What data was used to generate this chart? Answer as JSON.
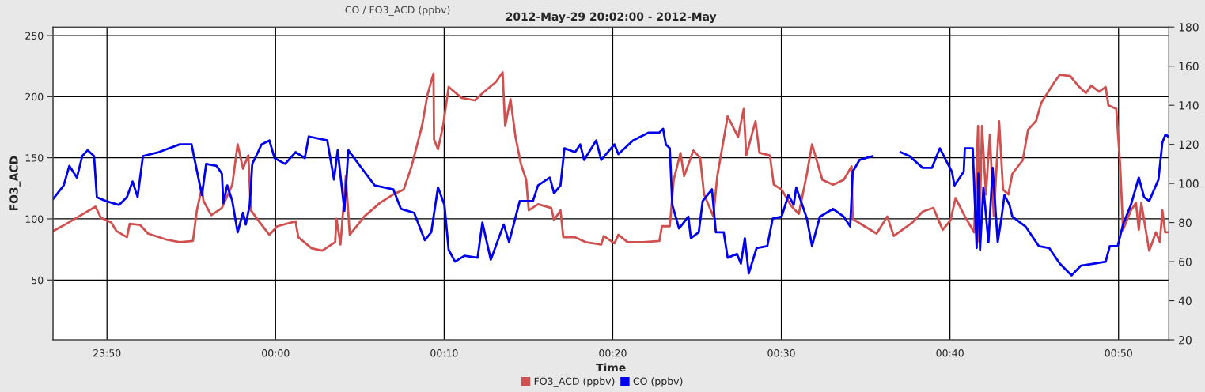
{
  "chart_data": {
    "type": "line",
    "title": "2012-May-29 20:02:00 - 2012-May",
    "xlabel": "Time",
    "ylabel": "FO3_ACD",
    "annotations": [
      "CO / FO3_ACD (ppbv)"
    ],
    "xlim": [
      "2012-05-29T23:46:48",
      "2012-05-30T00:52:59"
    ],
    "xticks": [
      {
        "value": "2012-05-29T23:50",
        "label": "23:50"
      },
      {
        "value": "2012-05-30T00:00",
        "label": "00:00"
      },
      {
        "value": "2012-05-30T00:10",
        "label": "00:10"
      },
      {
        "value": "2012-05-30T00:20",
        "label": "00:20"
      },
      {
        "value": "2012-05-30T00:30",
        "label": "00:30"
      },
      {
        "value": "2012-05-30T00:40",
        "label": "00:40"
      },
      {
        "value": "2012-05-30T00:50",
        "label": "00:50"
      }
    ],
    "ylim": [
      1,
      257
    ],
    "yticks": [
      50,
      100,
      150,
      200,
      250
    ],
    "y2lim": [
      20,
      180
    ],
    "y2ticks": [
      20,
      40,
      60,
      80,
      100,
      120,
      140,
      160,
      180
    ],
    "grid": true,
    "legend": "bottom",
    "series": [
      {
        "name": "FO3_ACD (ppbv)",
        "color": "#d05050",
        "x": [
          "2012-05-29T23:46:48",
          "2012-05-29T23:47:36",
          "2012-05-29T23:48:13",
          "2012-05-29T23:49:19",
          "2012-05-29T23:49:38",
          "2012-05-29T23:50:15",
          "2012-05-29T23:50:34",
          "2012-05-29T23:51:11",
          "2012-05-29T23:51:21",
          "2012-05-29T23:51:58",
          "2012-05-29T23:52:26",
          "2012-05-29T23:53:32",
          "2012-05-29T23:54:19",
          "2012-05-29T23:55:06",
          "2012-05-29T23:55:20",
          "2012-05-29T23:55:38",
          "2012-05-29T23:55:43",
          "2012-05-29T23:56:11",
          "2012-05-29T23:56:49",
          "2012-05-29T23:57:26",
          "2012-05-29T23:57:45",
          "2012-05-29T23:58:04",
          "2012-05-29T23:58:23",
          "2012-05-29T23:58:32",
          "2012-05-29T23:59:01",
          "2012-05-29T23:59:38",
          "2012-05-30T00:00:06",
          "2012-05-30T00:01:11",
          "2012-05-30T00:01:21",
          "2012-05-30T00:02:08",
          "2012-05-30T00:02:46",
          "2012-05-30T00:03:32",
          "2012-05-30T00:03:37",
          "2012-05-30T00:03:51",
          "2012-05-30T00:04:10",
          "2012-05-30T00:04:24",
          "2012-05-30T00:05:16",
          "2012-05-30T00:06:11",
          "2012-05-30T00:06:59",
          "2012-05-30T00:07:36",
          "2012-05-30T00:08:04",
          "2012-05-30T00:08:41",
          "2012-05-30T00:09:01",
          "2012-05-30T00:09:22",
          "2012-05-30T00:09:24",
          "2012-05-30T00:09:38",
          "2012-05-30T00:09:56",
          "2012-05-30T00:10:16",
          "2012-05-30T00:11:02",
          "2012-05-30T00:11:49",
          "2012-05-30T00:12:17",
          "2012-05-30T00:13:04",
          "2012-05-30T00:13:28",
          "2012-05-30T00:13:37",
          "2012-05-30T00:13:56",
          "2012-05-30T00:14:14",
          "2012-05-30T00:14:33",
          "2012-05-30T00:14:52",
          "2012-05-30T00:15:01",
          "2012-05-30T00:15:34",
          "2012-05-30T00:16:21",
          "2012-05-30T00:16:31",
          "2012-05-30T00:16:54",
          "2012-05-30T00:17:04",
          "2012-05-30T00:17:46",
          "2012-05-30T00:18:23",
          "2012-05-30T00:19:19",
          "2012-05-30T00:19:28",
          "2012-05-30T00:20:06",
          "2012-05-30T00:20:20",
          "2012-05-30T00:20:53",
          "2012-05-30T00:21:49",
          "2012-05-30T00:22:46",
          "2012-05-30T00:22:55",
          "2012-05-30T00:23:23",
          "2012-05-30T00:23:37",
          "2012-05-30T00:24:01",
          "2012-05-30T00:24:14",
          "2012-05-30T00:24:47",
          "2012-05-30T00:25:11",
          "2012-05-30T00:25:25",
          "2012-05-30T00:25:58",
          "2012-05-30T00:26:12",
          "2012-05-30T00:26:49",
          "2012-05-30T00:27:26",
          "2012-05-30T00:27:46",
          "2012-05-30T00:27:55",
          "2012-05-30T00:28:28",
          "2012-05-30T00:28:42",
          "2012-05-30T00:29:19",
          "2012-05-30T00:29:33",
          "2012-05-30T00:30:01",
          "2012-05-30T00:30:34",
          "2012-05-30T00:31:02",
          "2012-05-30T00:31:31",
          "2012-05-30T00:31:49",
          "2012-05-30T00:32:26",
          "2012-05-30T00:33:04",
          "2012-05-30T00:33:42",
          "2012-05-30T00:34:10",
          "2012-05-30T00:34:14",
          "2012-05-30T00:34:56",
          "2012-05-30T00:35:39",
          "2012-05-30T00:36:17",
          "2012-05-30T00:36:40",
          "2012-05-30T00:37:46",
          "2012-05-30T00:38:23",
          "2012-05-30T00:39:01",
          "2012-05-30T00:39:34",
          "2012-05-30T00:40:02",
          "2012-05-30T00:40:20",
          "2012-05-30T00:40:53",
          "2012-05-30T00:41:26",
          "2012-05-30T00:41:40",
          "2012-05-30T00:41:44",
          "2012-05-30T00:41:54",
          "2012-05-30T00:42:08",
          "2012-05-30T00:42:22",
          "2012-05-30T00:42:36",
          "2012-05-30T00:42:55",
          "2012-05-30T00:43:09",
          "2012-05-30T00:43:28",
          "2012-05-30T00:43:42",
          "2012-05-30T00:44:19",
          "2012-05-30T00:44:38",
          "2012-05-30T00:45:06",
          "2012-05-30T00:45:25",
          "2012-05-30T00:46:12",
          "2012-05-30T00:46:31",
          "2012-05-30T00:47:08",
          "2012-05-30T00:47:36",
          "2012-05-30T00:48:04",
          "2012-05-30T00:48:23",
          "2012-05-30T00:48:51",
          "2012-05-30T00:49:14",
          "2012-05-30T00:49:24",
          "2012-05-30T00:49:52",
          "2012-05-30T00:50:06",
          "2012-05-30T00:50:16",
          "2012-05-30T00:50:44",
          "2012-05-30T00:51:02",
          "2012-05-30T00:51:12",
          "2012-05-30T00:51:21",
          "2012-05-30T00:51:49",
          "2012-05-30T00:52:13",
          "2012-05-30T00:52:27",
          "2012-05-30T00:52:36",
          "2012-05-30T00:52:46",
          "2012-05-30T00:52:55"
        ],
        "values": [
          90,
          96,
          101,
          110,
          101,
          97,
          90,
          85,
          96,
          95,
          88,
          83,
          81,
          82,
          107,
          126,
          115,
          103,
          109,
          128,
          161,
          141,
          152,
          107,
          98,
          87,
          94,
          98,
          85,
          76,
          74,
          81,
          100,
          79,
          135,
          87,
          102,
          113,
          120,
          124,
          143,
          176,
          202,
          219,
          165,
          157,
          176,
          208,
          199,
          197,
          203,
          212,
          220,
          176,
          198,
          167,
          145,
          132,
          107,
          112,
          109,
          99,
          107,
          85,
          85,
          81,
          79,
          86,
          80,
          87,
          81,
          81,
          82,
          94,
          94,
          132,
          154,
          135,
          156,
          150,
          120,
          102,
          135,
          184,
          167,
          190,
          152,
          180,
          154,
          152,
          128,
          124,
          111,
          104,
          137,
          161,
          132,
          128,
          132,
          143,
          100,
          94,
          88,
          102,
          86,
          97,
          106,
          109,
          91,
          99,
          117,
          102,
          89,
          176,
          81,
          176,
          120,
          169,
          102,
          180,
          124,
          120,
          137,
          148,
          173,
          180,
          195,
          212,
          218,
          217,
          209,
          203,
          209,
          204,
          208,
          193,
          190,
          143,
          91,
          107,
          113,
          91,
          113,
          74,
          89,
          81,
          107,
          89,
          89
        ]
      },
      {
        "name": "CO (ppbv)",
        "color": "#0000ee",
        "axis": "y2",
        "x": [
          "2012-05-29T23:46:48",
          "2012-05-29T23:47:26",
          "2012-05-29T23:47:46",
          "2012-05-29T23:48:13",
          "2012-05-29T23:48:32",
          "2012-05-29T23:48:51",
          "2012-05-29T23:49:14",
          "2012-05-29T23:49:24",
          "2012-05-29T23:49:56",
          "2012-05-29T23:50:43",
          "2012-05-29T23:51:11",
          "2012-05-29T23:51:31",
          "2012-05-29T23:51:49",
          "2012-05-29T23:52:08",
          "2012-05-29T23:53:04",
          "2012-05-29T23:54:19",
          "2012-05-29T23:55:01",
          "2012-05-29T23:55:15",
          "2012-05-29T23:55:38",
          "2012-05-29T23:55:53",
          "2012-05-29T23:56:30",
          "2012-05-29T23:56:49",
          "2012-05-29T23:56:54",
          "2012-05-29T23:57:08",
          "2012-05-29T23:57:26",
          "2012-05-29T23:57:45",
          "2012-05-29T23:58:04",
          "2012-05-29T23:58:14",
          "2012-05-29T23:58:28",
          "2012-05-29T23:58:37",
          "2012-05-29T23:58:51",
          "2012-05-29T23:59:10",
          "2012-05-29T23:59:38",
          "2012-05-29T23:59:56",
          "2012-05-30T00:00:34",
          "2012-05-30T00:01:11",
          "2012-05-30T00:01:44",
          "2012-05-30T00:01:58",
          "2012-05-30T00:03:04",
          "2012-05-30T00:03:28",
          "2012-05-30T00:03:41",
          "2012-05-30T00:04:05",
          "2012-05-30T00:04:19",
          "2012-05-30T00:05:16",
          "2012-05-30T00:05:53",
          "2012-05-30T00:06:59",
          "2012-05-30T00:07:26",
          "2012-05-30T00:08:13",
          "2012-05-30T00:08:51",
          "2012-05-30T00:09:14",
          "2012-05-30T00:09:38",
          "2012-05-30T00:10:01",
          "2012-05-30T00:10:16",
          "2012-05-30T00:10:39",
          "2012-05-30T00:11:12",
          "2012-05-30T00:11:59",
          "2012-05-30T00:12:16",
          "2012-05-30T00:12:46",
          "2012-05-30T00:13:32",
          "2012-05-30T00:13:51",
          "2012-05-30T00:14:29",
          "2012-05-30T00:15:16",
          "2012-05-30T00:15:34",
          "2012-05-30T00:16:16",
          "2012-05-30T00:16:31",
          "2012-05-30T00:16:54",
          "2012-05-30T00:17:08",
          "2012-05-30T00:17:46",
          "2012-05-30T00:18:04",
          "2012-05-30T00:18:18",
          "2012-05-30T00:19:01",
          "2012-05-30T00:19:19",
          "2012-05-30T00:20:06",
          "2012-05-30T00:20:20",
          "2012-05-30T00:21:12",
          "2012-05-30T00:22:08",
          "2012-05-30T00:22:46",
          "2012-05-30T00:22:59",
          "2012-05-30T00:23:09",
          "2012-05-30T00:23:23",
          "2012-05-30T00:23:32",
          "2012-05-30T00:23:56",
          "2012-05-30T00:24:29",
          "2012-05-30T00:24:38",
          "2012-05-30T00:25:06",
          "2012-05-30T00:25:20",
          "2012-05-30T00:25:53",
          "2012-05-30T00:26:07",
          "2012-05-30T00:26:35",
          "2012-05-30T00:26:49",
          "2012-05-30T00:27:22",
          "2012-05-30T00:27:36",
          "2012-05-30T00:27:50",
          "2012-05-30T00:28:04",
          "2012-05-30T00:28:32",
          "2012-05-30T00:29:10",
          "2012-05-30T00:29:29",
          "2012-05-30T00:30:01",
          "2012-05-30T00:30:25",
          "2012-05-30T00:30:44",
          "2012-05-30T00:30:53",
          "2012-05-30T00:31:31",
          "2012-05-30T00:31:49",
          "2012-05-30T00:32:17",
          "2012-05-30T00:33:04",
          "2012-05-30T00:33:42",
          "2012-05-30T00:34:05",
          "2012-05-30T00:34:14",
          "2012-05-30T00:34:38",
          "2012-05-30T00:35:25",
          "2012-05-30T00:36:12",
          "2012-05-30T00:37:04",
          "2012-05-30T00:37:36",
          "2012-05-30T00:38:23",
          "2012-05-30T00:38:56",
          "2012-05-30T00:39:24",
          "2012-05-30T00:40:07",
          "2012-05-30T00:40:16",
          "2012-05-30T00:40:49",
          "2012-05-30T00:40:53",
          "2012-05-30T00:41:21",
          "2012-05-30T00:41:35",
          "2012-05-30T00:41:41",
          "2012-05-30T00:41:47",
          "2012-05-30T00:41:59",
          "2012-05-30T00:42:17",
          "2012-05-30T00:42:32",
          "2012-05-30T00:42:50",
          "2012-05-30T00:43:04",
          "2012-05-30T00:43:14",
          "2012-05-30T00:43:32",
          "2012-05-30T00:43:42",
          "2012-05-30T00:44:29",
          "2012-05-30T00:45:16",
          "2012-05-30T00:45:53",
          "2012-05-30T00:46:31",
          "2012-05-30T00:47:13",
          "2012-05-30T00:47:46",
          "2012-05-30T00:48:32",
          "2012-05-30T00:49:14",
          "2012-05-30T00:49:29",
          "2012-05-30T00:49:57",
          "2012-05-30T00:50:16",
          "2012-05-30T00:50:44",
          "2012-05-30T00:51:12",
          "2012-05-30T00:51:31",
          "2012-05-30T00:51:49",
          "2012-05-30T00:52:22",
          "2012-05-30T00:52:36",
          "2012-05-30T00:52:47",
          "2012-05-30T00:52:57"
        ],
        "values": [
          92,
          99,
          109,
          103,
          114,
          117,
          114,
          93,
          91,
          89,
          93,
          101,
          93,
          114,
          116,
          120,
          120,
          110,
          94,
          110,
          109,
          105,
          90,
          99,
          91,
          75,
          85,
          79,
          89,
          110,
          114,
          120,
          122,
          113,
          110,
          116,
          113,
          124,
          122,
          102,
          117,
          86,
          117,
          106,
          99,
          97,
          87,
          85,
          71,
          75,
          98,
          89,
          66,
          60,
          63,
          62,
          80,
          61,
          79,
          70,
          91,
          91,
          99,
          103,
          95,
          99,
          118,
          116,
          120,
          112,
          122,
          112,
          120,
          115,
          122,
          126,
          126,
          128,
          120,
          118,
          89,
          77,
          83,
          72,
          75,
          91,
          97,
          75,
          75,
          62,
          64,
          59,
          72,
          54,
          67,
          68,
          82,
          83,
          94,
          89,
          98,
          82,
          68,
          83,
          87,
          83,
          78,
          106,
          112,
          114,
          null,
          116,
          114,
          108,
          108,
          118,
          106,
          99,
          106,
          118,
          118,
          67,
          105,
          66,
          98,
          70,
          108,
          70,
          83,
          94,
          89,
          83,
          78,
          68,
          67,
          59,
          53,
          58,
          59,
          60,
          68,
          68,
          79,
          89,
          103,
          93,
          91,
          102,
          121,
          125,
          124
        ]
      }
    ]
  }
}
